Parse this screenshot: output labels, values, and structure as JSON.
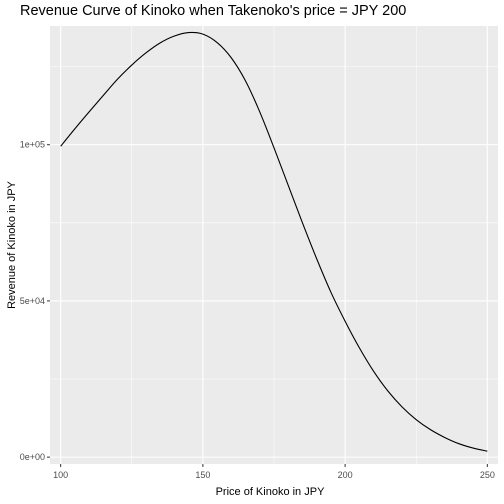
{
  "chart_data": {
    "type": "line",
    "title": "Revenue Curve of Kinoko when Takenoko's price = JPY 200",
    "xlabel": "Price of Kinoko in JPY",
    "ylabel": "Revenue of Kinoko in JPY",
    "xlim": [
      96.25,
      253.75
    ],
    "ylim": [
      -2200,
      138000
    ],
    "x_ticks": [
      100,
      150,
      200,
      250
    ],
    "x_tick_labels": [
      "100",
      "150",
      "200",
      "250"
    ],
    "y_ticks": [
      0,
      50000,
      100000
    ],
    "y_tick_labels": [
      "0e+00",
      "5e+04",
      "1e+05"
    ],
    "grid": true,
    "legend": "none",
    "colors": {
      "panel": "#ebebeb",
      "grid": "#ffffff",
      "line": "#000000",
      "tick_text": "#4d4d4d"
    },
    "series": [
      {
        "x": [
          100,
          105,
          110,
          115,
          120,
          125,
          130,
          135,
          140,
          145,
          150,
          155,
          160,
          165,
          170,
          175,
          180,
          185,
          190,
          195,
          200,
          205,
          210,
          215,
          220,
          225,
          230,
          235,
          240,
          245,
          250
        ],
        "values": [
          99500,
          105100,
          110500,
          115800,
          121000,
          125500,
          129400,
          132600,
          134800,
          135900,
          135400,
          132700,
          127800,
          120400,
          110500,
          99000,
          87000,
          75000,
          63500,
          52800,
          43500,
          35000,
          27500,
          21200,
          16100,
          12000,
          8800,
          6300,
          4300,
          2900,
          1900
        ]
      }
    ]
  }
}
